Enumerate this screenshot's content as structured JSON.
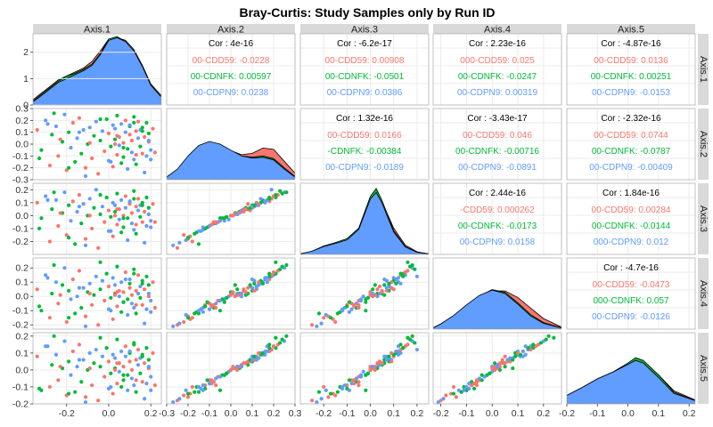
{
  "title": "Bray-Curtis: Study Samples only by Run ID",
  "colors": {
    "group1": "#F8766D",
    "group2": "#00BA38",
    "group3": "#619CFF",
    "strip_bg": "#D9D9D9",
    "grid": "#EBEBEB",
    "panel_border": "#B3B3B3"
  },
  "chart_data": {
    "type": "scatter",
    "title": "Bray-Curtis: Study Samples only by Run ID",
    "variables": [
      "Axis.1",
      "Axis.2",
      "Axis.3",
      "Axis.4",
      "Axis.5"
    ],
    "groups": [
      "000-CDD59",
      "000-CDNFK",
      "000-CDPN9"
    ],
    "group_labels_visible": [
      "00-CDD59",
      "00-CDNFK",
      "00-CDPN9"
    ],
    "axis_ranges": {
      "Axis.1": [
        -0.36,
        0.25
      ],
      "Axis.2": [
        -0.3,
        0.3
      ],
      "Axis.3": [
        -0.3,
        0.25
      ],
      "Axis.4": [
        -0.23,
        0.27
      ],
      "Axis.5": [
        -0.2,
        0.22
      ]
    },
    "x_ticks": [
      [
        "-0.2",
        "0.0",
        "0.2"
      ],
      [
        "-0.3",
        "-0.2",
        "-0.1",
        "0.0",
        "0.1",
        "0.2",
        "0.3"
      ],
      [
        "-0.2",
        "-0.1",
        "0.0",
        "0.1",
        "0.2"
      ],
      [
        "-0.2",
        "-0.1",
        "0.0",
        "0.1",
        "0.2"
      ],
      [
        "-0.2",
        "-0.1",
        "0.0",
        "0.1",
        "0.2"
      ]
    ],
    "y_ticks": [
      [
        "0",
        "1",
        "2"
      ],
      [
        "-0.3",
        "-0.2",
        "-0.1",
        "0.0",
        "0.1",
        "0.2",
        "0.3"
      ],
      [
        "-0.2",
        "-0.1",
        "0.0",
        "0.1",
        "0.2"
      ],
      [
        "-0.2",
        "-0.1",
        "0.0",
        "0.1",
        "0.2"
      ],
      [
        "-0.2",
        "-0.1",
        "0.0",
        "0.1",
        "0.2"
      ]
    ],
    "density_ylim": [
      0,
      2.7
    ],
    "correlations": [
      {
        "pair": [
          "Axis.1",
          "Axis.2"
        ],
        "overall": "Cor : 4e-16",
        "by_group": [
          "00-CDD59: -0.0228",
          "00-CDNFK: 0.00597",
          "00-CDPN9: 0.0238"
        ]
      },
      {
        "pair": [
          "Axis.1",
          "Axis.3"
        ],
        "overall": "Cor : -6.2e-17",
        "by_group": [
          "00-CDD59: 0.00908",
          "00-CDNFK: -0.0501",
          "00-CDPN9: 0.0386"
        ]
      },
      {
        "pair": [
          "Axis.1",
          "Axis.4"
        ],
        "overall": "Cor : 2.23e-16",
        "by_group": [
          "000-CDD59: 0.025",
          "00-CDNFK: -0.0247",
          "00-CDPN9: 0.00319"
        ]
      },
      {
        "pair": [
          "Axis.1",
          "Axis.5"
        ],
        "overall": "Cor : -4.87e-16",
        "by_group": [
          "00-CDD59: 0.0136",
          "00-CDNFK: 0.00251",
          "00-CDPN9: -0.0153"
        ]
      },
      {
        "pair": [
          "Axis.2",
          "Axis.3"
        ],
        "overall": "Cor : 1.32e-16",
        "by_group": [
          "00-CDD59: 0.0166",
          "-CDNFK: -0.00384",
          "00-CDPN9: -0.0189"
        ]
      },
      {
        "pair": [
          "Axis.2",
          "Axis.4"
        ],
        "overall": "Cor : -3.43e-17",
        "by_group": [
          "00-CDD59: 0.046",
          "00-CDNFK: -0.00716",
          "00-CDPN9: -0.0891"
        ]
      },
      {
        "pair": [
          "Axis.2",
          "Axis.5"
        ],
        "overall": "Cor : -2.32e-16",
        "by_group": [
          "00-CDD59: 0.0744",
          "00-CDNFK: -0.0787",
          "00-CDPN9: -0.00409"
        ]
      },
      {
        "pair": [
          "Axis.3",
          "Axis.4"
        ],
        "overall": "Cor : 2.44e-16",
        "by_group": [
          "-CDD59: 0.000262",
          "00-CDNFK: -0.0173",
          "00-CDPN9: 0.0158"
        ]
      },
      {
        "pair": [
          "Axis.3",
          "Axis.5"
        ],
        "overall": "Cor : 1.84e-16",
        "by_group": [
          "00-CDD59: 0.00284",
          "00-CDNFK: -0.0144",
          "000-CDPN9: 0.012"
        ]
      },
      {
        "pair": [
          "Axis.4",
          "Axis.5"
        ],
        "overall": "Cor : -4.7e-16",
        "by_group": [
          "00-CDD59: -0.0473",
          "000-CDNFK: 0.057",
          "00-CDPN9: -0.0126"
        ]
      }
    ],
    "densities": [
      {
        "var": "Axis.1",
        "x": [
          -0.36,
          -0.32,
          -0.28,
          -0.24,
          -0.2,
          -0.16,
          -0.12,
          -0.08,
          -0.04,
          0.0,
          0.04,
          0.08,
          0.12,
          0.16,
          0.2,
          0.25
        ],
        "series": [
          {
            "name": "000-CDD59",
            "values": [
              0.2,
              0.45,
              0.7,
              0.95,
              1.1,
              1.25,
              1.4,
              1.65,
              2.05,
              2.5,
              2.55,
              2.45,
              2.1,
              1.5,
              0.8,
              0.35
            ]
          },
          {
            "name": "000-CDNFK",
            "values": [
              0.15,
              0.4,
              0.65,
              0.9,
              1.1,
              1.2,
              1.35,
              1.55,
              1.95,
              2.5,
              2.6,
              2.4,
              2.0,
              1.4,
              0.75,
              0.3
            ]
          },
          {
            "name": "000-CDPN9",
            "values": [
              0.12,
              0.35,
              0.6,
              0.85,
              1.0,
              1.15,
              1.3,
              1.5,
              1.9,
              2.45,
              2.55,
              2.4,
              2.05,
              1.45,
              0.75,
              0.3
            ]
          }
        ]
      },
      {
        "var": "Axis.2",
        "x": [
          -0.3,
          -0.25,
          -0.2,
          -0.15,
          -0.1,
          -0.05,
          0.0,
          0.05,
          0.1,
          0.15,
          0.2,
          0.25,
          0.3
        ],
        "series": [
          {
            "name": "000-CDD59",
            "values": [
              0.1,
              0.35,
              0.8,
              1.15,
              1.3,
              1.25,
              1.1,
              0.95,
              1.0,
              1.2,
              1.15,
              0.7,
              0.25
            ]
          },
          {
            "name": "000-CDNFK",
            "values": [
              0.1,
              0.38,
              0.85,
              1.25,
              1.4,
              1.3,
              1.1,
              0.9,
              0.85,
              0.9,
              0.8,
              0.45,
              0.12
            ]
          },
          {
            "name": "000-CDPN9",
            "values": [
              0.1,
              0.4,
              0.9,
              1.3,
              1.45,
              1.35,
              1.12,
              0.9,
              0.82,
              0.85,
              0.75,
              0.4,
              0.1
            ]
          }
        ]
      },
      {
        "var": "Axis.3",
        "x": [
          -0.3,
          -0.25,
          -0.2,
          -0.15,
          -0.1,
          -0.05,
          0.0,
          0.025,
          0.05,
          0.1,
          0.15,
          0.2,
          0.25
        ],
        "series": [
          {
            "name": "000-CDD59",
            "values": [
              0.02,
              0.1,
              0.3,
              0.45,
              0.55,
              0.9,
              2.0,
              2.3,
              2.0,
              1.0,
              0.35,
              0.1,
              0.02
            ]
          },
          {
            "name": "000-CDNFK",
            "values": [
              0.02,
              0.12,
              0.32,
              0.45,
              0.6,
              1.0,
              2.2,
              2.5,
              2.05,
              0.9,
              0.3,
              0.08,
              0.02
            ]
          },
          {
            "name": "000-CDPN9",
            "values": [
              0.02,
              0.12,
              0.3,
              0.42,
              0.55,
              0.95,
              2.1,
              2.35,
              1.95,
              0.85,
              0.28,
              0.08,
              0.02
            ]
          }
        ]
      },
      {
        "var": "Axis.4",
        "x": [
          -0.23,
          -0.2,
          -0.15,
          -0.1,
          -0.05,
          0.0,
          0.05,
          0.1,
          0.15,
          0.2,
          0.27
        ],
        "series": [
          {
            "name": "000-CDD59",
            "values": [
              0.05,
              0.2,
              0.5,
              0.9,
              1.25,
              1.45,
              1.45,
              1.2,
              0.8,
              0.4,
              0.08
            ]
          },
          {
            "name": "000-CDNFK",
            "values": [
              0.05,
              0.2,
              0.5,
              0.9,
              1.25,
              1.5,
              1.4,
              1.0,
              0.55,
              0.25,
              0.05
            ]
          },
          {
            "name": "000-CDPN9",
            "values": [
              0.05,
              0.2,
              0.52,
              0.92,
              1.28,
              1.48,
              1.35,
              0.95,
              0.5,
              0.22,
              0.04
            ]
          }
        ]
      },
      {
        "var": "Axis.5",
        "x": [
          -0.2,
          -0.15,
          -0.1,
          -0.05,
          0.0,
          0.025,
          0.05,
          0.1,
          0.15,
          0.22
        ],
        "series": [
          {
            "name": "000-CDD59",
            "values": [
              0.3,
              0.6,
              0.95,
              1.2,
              1.5,
              1.7,
              1.6,
              1.1,
              0.5,
              0.15
            ]
          },
          {
            "name": "000-CDNFK",
            "values": [
              0.32,
              0.62,
              0.95,
              1.2,
              1.55,
              1.75,
              1.65,
              1.1,
              0.45,
              0.12
            ]
          },
          {
            "name": "000-CDPN9",
            "values": [
              0.32,
              0.62,
              0.95,
              1.2,
              1.5,
              1.65,
              1.55,
              1.0,
              0.4,
              0.12
            ]
          }
        ]
      }
    ],
    "samples": {
      "group": [
        0,
        1,
        2,
        0,
        1,
        2,
        0,
        1,
        2,
        0,
        1,
        2,
        0,
        1,
        2,
        0,
        1,
        2,
        0,
        1,
        2,
        0,
        1,
        2,
        0,
        1,
        2,
        0,
        1,
        2,
        0,
        1,
        2,
        0,
        1,
        2,
        0,
        1,
        2,
        0,
        1,
        2,
        0,
        1,
        2,
        0,
        1,
        2,
        0,
        1,
        2,
        0,
        1,
        2,
        0,
        1,
        2,
        0,
        1,
        2,
        0,
        1,
        2,
        0,
        1,
        2,
        0,
        1,
        2,
        0,
        1,
        2,
        0,
        1,
        2,
        0,
        1,
        2,
        0,
        1,
        2,
        0,
        1,
        2,
        0,
        1,
        2,
        0,
        1,
        2
      ],
      "Axis.1": [
        -0.34,
        -0.32,
        -0.3,
        -0.28,
        -0.27,
        -0.25,
        -0.24,
        -0.22,
        -0.21,
        -0.2,
        -0.19,
        -0.18,
        -0.17,
        -0.16,
        -0.15,
        -0.14,
        -0.13,
        -0.12,
        -0.11,
        -0.1,
        -0.09,
        -0.08,
        -0.07,
        -0.06,
        -0.05,
        -0.04,
        -0.03,
        -0.02,
        -0.01,
        0.0,
        0.0,
        0.01,
        0.02,
        0.02,
        0.03,
        0.03,
        0.04,
        0.04,
        0.05,
        0.05,
        0.06,
        0.06,
        0.07,
        0.07,
        0.08,
        0.08,
        0.09,
        0.09,
        0.1,
        0.1,
        0.11,
        0.11,
        0.12,
        0.12,
        0.13,
        0.13,
        0.14,
        0.14,
        0.15,
        0.15,
        0.16,
        0.16,
        0.17,
        0.17,
        0.18,
        0.18,
        0.19,
        0.19,
        0.2,
        0.21,
        -0.33,
        -0.29,
        -0.23,
        -0.19,
        -0.14,
        -0.09,
        -0.04,
        0.01,
        0.04,
        0.07,
        0.1,
        0.13,
        0.16,
        0.19,
        0.22,
        -0.26,
        -0.11,
        0.03,
        0.12,
        0.2
      ],
      "Axis.2": [
        0.12,
        -0.05,
        0.2,
        -0.18,
        0.08,
        0.15,
        -0.1,
        0.02,
        0.25,
        -0.22,
        0.1,
        -0.03,
        0.18,
        -0.15,
        0.05,
        0.22,
        -0.08,
        0.12,
        -0.2,
        0.0,
        0.14,
        -0.12,
        0.07,
        0.19,
        -0.25,
        0.03,
        0.11,
        -0.06,
        0.21,
        -0.14,
        0.09,
        -0.02,
        0.16,
        -0.19,
        0.04,
        0.13,
        -0.09,
        0.24,
        -0.01,
        0.06,
        -0.16,
        0.17,
        0.01,
        -0.11,
        0.1,
        0.2,
        -0.04,
        -0.21,
        0.08,
        0.15,
        -0.07,
        0.03,
        0.23,
        -0.13,
        0.11,
        -0.17,
        0.05,
        0.19,
        -0.02,
        0.12,
        -0.08,
        0.14,
        -0.24,
        0.06,
        0.18,
        -0.1,
        0.02,
        0.09,
        -0.05,
        0.13,
        -0.12,
        0.17,
        0.04,
        -0.2,
        0.1,
        0.01,
        0.21,
        -0.15,
        0.07,
        -0.03,
        0.16,
        -0.09,
        0.11,
        0.03,
        -0.07,
        0.26,
        -0.27,
        0.0,
        0.18,
        -0.13
      ],
      "Axis.3": [
        0.1,
        -0.02,
        0.15,
        -0.2,
        0.05,
        0.12,
        -0.08,
        0.02,
        0.18,
        -0.15,
        0.08,
        -0.04,
        0.11,
        -0.22,
        0.03,
        0.16,
        -0.06,
        0.09,
        -0.18,
        0.0,
        0.13,
        -0.1,
        0.06,
        0.2,
        -0.25,
        0.01,
        0.07,
        -0.05,
        0.14,
        -0.12,
        0.04,
        -0.01,
        0.1,
        -0.16,
        0.03,
        0.08,
        -0.07,
        0.17,
        -0.03,
        0.05,
        -0.13,
        0.12,
        0.0,
        -0.09,
        0.06,
        0.15,
        -0.02,
        -0.19,
        0.09,
        0.11,
        -0.06,
        0.02,
        0.19,
        -0.11,
        0.07,
        -0.14,
        0.04,
        0.13,
        -0.01,
        0.08,
        -0.05,
        0.1,
        -0.21,
        0.03,
        0.14,
        -0.08,
        0.01,
        0.06,
        -0.04,
        0.09,
        -0.1,
        0.12,
        0.02,
        -0.17,
        0.07,
        0.0,
        0.16,
        -0.12,
        0.05,
        -0.02,
        0.11,
        -0.07,
        0.08,
        0.01,
        -0.05,
        0.18,
        -0.23,
        0.0,
        0.13,
        -0.09
      ],
      "Axis.4": [
        0.05,
        -0.1,
        0.15,
        -0.15,
        0.02,
        0.1,
        -0.05,
        0.08,
        0.2,
        -0.18,
        0.04,
        -0.02,
        0.12,
        -0.12,
        0.0,
        0.18,
        -0.08,
        0.06,
        -0.14,
        0.03,
        0.09,
        -0.06,
        0.01,
        0.14,
        -0.2,
        0.05,
        0.11,
        -0.03,
        0.16,
        -0.09,
        0.07,
        -0.01,
        0.13,
        -0.16,
        0.02,
        0.08,
        -0.07,
        0.21,
        0.0,
        0.04,
        -0.11,
        0.1,
        0.03,
        -0.04,
        0.12,
        0.17,
        -0.02,
        -0.13,
        0.06,
        0.09,
        -0.05,
        0.01,
        0.19,
        -0.08,
        0.04,
        -0.12,
        0.02,
        0.15,
        -0.01,
        0.07,
        -0.06,
        0.11,
        -0.19,
        0.05,
        0.14,
        -0.09,
        0.0,
        0.08,
        -0.03,
        0.1,
        -0.07,
        0.13,
        0.01,
        -0.15,
        0.06,
        0.02,
        0.24,
        -0.1,
        0.03,
        -0.04,
        0.12,
        -0.06,
        0.09,
        0.02,
        -0.08,
        0.22,
        -0.21,
        0.01,
        0.16,
        -0.11
      ],
      "Axis.5": [
        0.08,
        -0.12,
        0.14,
        -0.1,
        0.03,
        0.09,
        -0.06,
        0.01,
        0.17,
        -0.15,
        0.05,
        -0.03,
        0.11,
        -0.13,
        0.02,
        0.15,
        -0.07,
        0.06,
        -0.16,
        0.0,
        0.1,
        -0.09,
        0.04,
        0.12,
        -0.18,
        0.02,
        0.08,
        -0.04,
        0.13,
        -0.11,
        0.05,
        -0.02,
        0.09,
        -0.14,
        0.01,
        0.07,
        -0.08,
        0.18,
        -0.01,
        0.04,
        -0.1,
        0.11,
        0.02,
        -0.06,
        0.08,
        0.14,
        -0.03,
        -0.12,
        0.05,
        0.1,
        -0.05,
        0.0,
        0.16,
        -0.09,
        0.06,
        -0.13,
        0.03,
        0.12,
        -0.02,
        0.07,
        -0.07,
        0.09,
        -0.17,
        0.04,
        0.13,
        -0.08,
        0.01,
        0.06,
        -0.04,
        0.1,
        -0.11,
        0.14,
        0.02,
        -0.14,
        0.06,
        0.01,
        0.19,
        -0.1,
        0.04,
        -0.03,
        0.11,
        -0.06,
        0.08,
        0.02,
        -0.09,
        0.2,
        -0.19,
        0.0,
        0.15,
        -0.12
      ]
    }
  }
}
